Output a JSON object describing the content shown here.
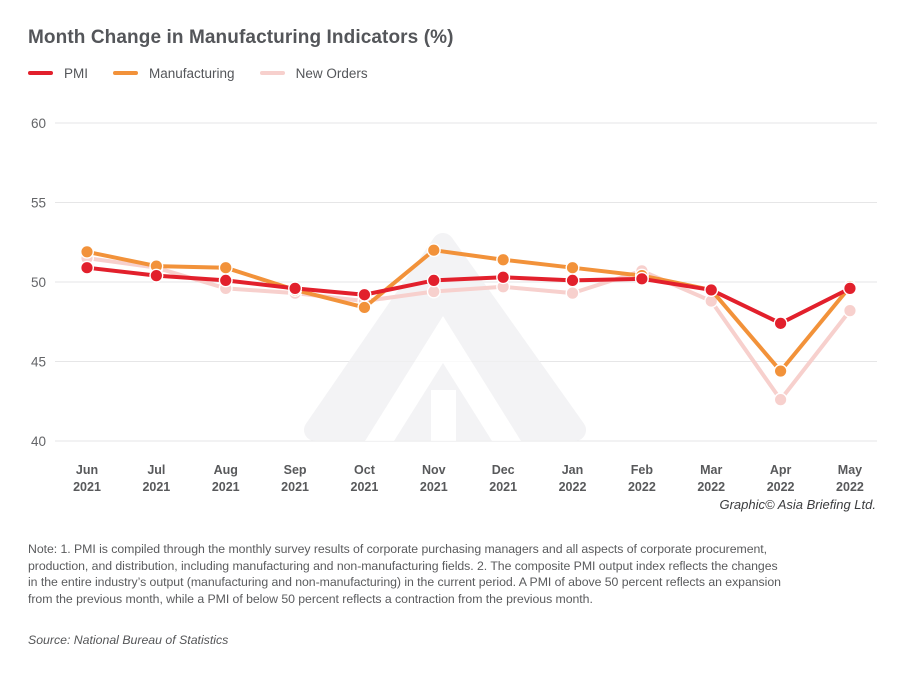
{
  "header": {
    "title": "Month Change in Manufacturing Indicators (%)"
  },
  "chart_data": {
    "type": "line",
    "title": "Month Change in Manufacturing Indicators (%)",
    "categories": [
      "Jun 2021",
      "Jul 2021",
      "Aug 2021",
      "Sep 2021",
      "Oct 2021",
      "Nov 2021",
      "Dec 2021",
      "Jan 2022",
      "Feb 2022",
      "Mar 2022",
      "Apr 2022",
      "May 2022"
    ],
    "series": [
      {
        "name": "PMI",
        "color": "#e2202c",
        "values": [
          50.9,
          50.4,
          50.1,
          49.6,
          49.2,
          50.1,
          50.3,
          50.1,
          50.2,
          49.5,
          47.4,
          49.6
        ]
      },
      {
        "name": "Manufacturing",
        "color": "#f2923a",
        "values": [
          51.9,
          51.0,
          50.9,
          49.5,
          48.4,
          52.0,
          51.4,
          50.9,
          50.4,
          49.5,
          44.4,
          49.7
        ]
      },
      {
        "name": "New Orders",
        "color": "#f7d0cd",
        "values": [
          51.5,
          50.9,
          49.6,
          49.3,
          48.8,
          49.4,
          49.7,
          49.3,
          50.7,
          48.8,
          42.6,
          48.2
        ]
      }
    ],
    "ylim": [
      40,
      60
    ],
    "yticks": [
      40,
      45,
      50,
      55,
      60
    ],
    "xlabel": "",
    "ylabel": "",
    "grid": "horizontal",
    "legend_position": "top-left",
    "gridline_color": "#e6e6e7",
    "watermark": "asia-briefing-logo"
  },
  "credit": "Graphic© Asia Briefing Ltd.",
  "note": {
    "lines": [
      "Note: 1. PMI is compiled through the monthly survey results of corporate purchasing managers and all aspects of corporate procurement,",
      "production, and distribution, including manufacturing and non-manufacturing fields. 2. The composite PMI output index reflects the changes",
      "in the entire industry’s output (manufacturing and non-manufacturing) in the current period. A PMI of above 50 percent reflects an expansion",
      "from the previous month, while a PMI of below 50 percent reflects a contraction from the previous month."
    ]
  },
  "source": "Source: National Bureau of Statistics"
}
